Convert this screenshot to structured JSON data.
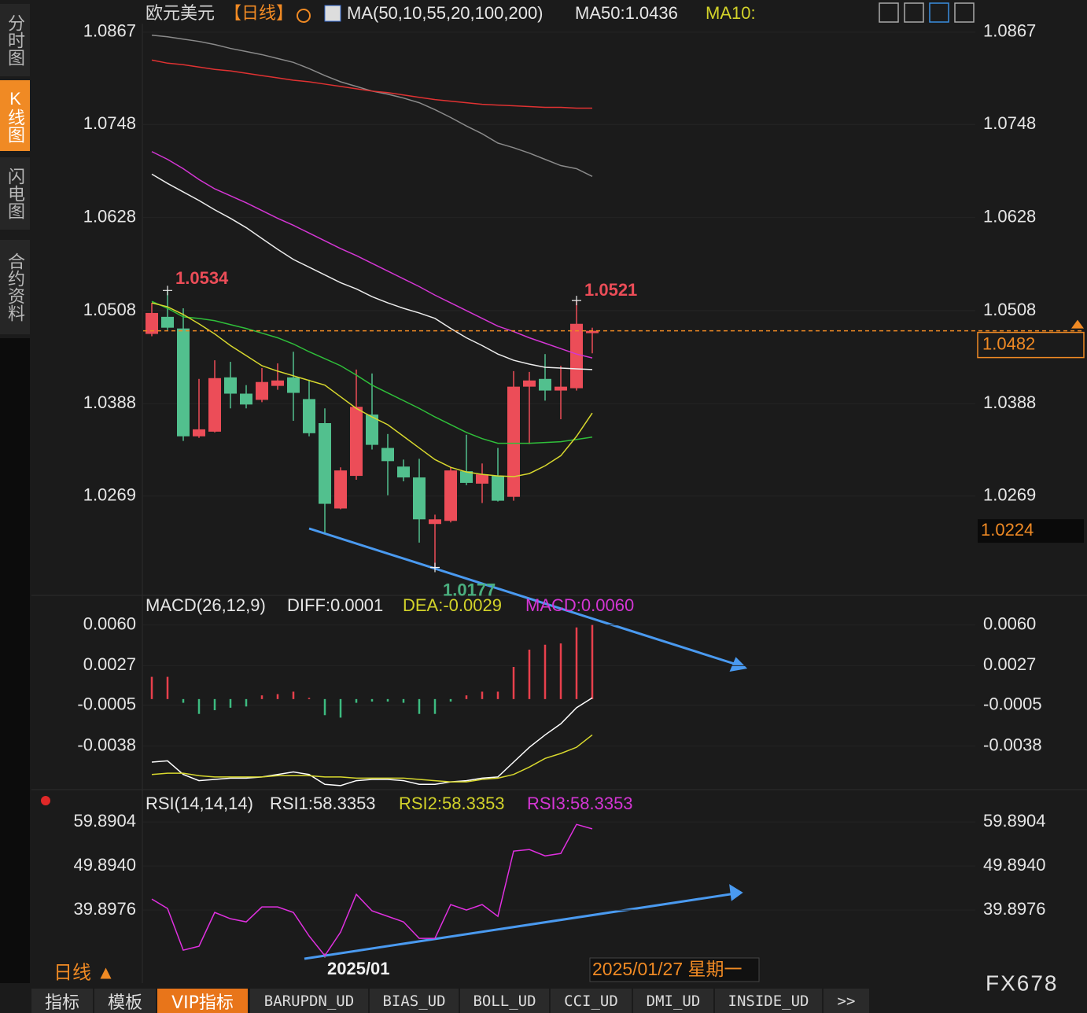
{
  "sidebar": [
    "分时图",
    "K线图",
    "闪电图",
    "合约资料"
  ],
  "tabs": [
    "指标",
    "模板",
    "VIP指标",
    "BARUPDN_UD",
    "BIAS_UD",
    "BOLL_UD",
    "CCI_UD",
    "DMI_UD",
    "INSIDE_UD",
    ">>"
  ],
  "footer": {
    "period": "日线 ▲",
    "current_date": "2025/01/27 星期一",
    "brand": "FX678"
  },
  "chart_data": [
    {
      "type": "candlestick",
      "title": "欧元美元",
      "period": "【日线】",
      "legend": [
        {
          "text": "MA(50,10,55,20,100,200)",
          "color": "#e6e6e6"
        },
        {
          "text": "MA50:1.0436",
          "color": "#e6e6e6"
        },
        {
          "text": "MA10:",
          "color": "#d2d22a"
        }
      ],
      "categories": [
        null,
        null,
        null,
        null,
        null,
        null,
        null,
        null,
        null,
        null,
        null,
        "2025/01",
        null,
        null,
        null,
        null,
        null,
        null,
        null,
        null,
        null,
        null,
        null,
        null,
        null,
        null,
        null,
        null,
        null
      ],
      "open": [
        1.0478,
        1.05,
        1.0485,
        1.0346,
        1.0352,
        1.0422,
        1.0401,
        1.0393,
        1.0411,
        1.0422,
        1.0394,
        1.0363,
        1.0253,
        1.0295,
        1.0374,
        1.0331,
        1.0307,
        1.0293,
        1.0233,
        1.0237,
        1.0301,
        1.0285,
        1.0295,
        1.0268,
        1.041,
        1.042,
        1.0405,
        1.0408,
        1.0479
      ],
      "high": [
        1.0518,
        1.0534,
        1.0511,
        1.042,
        1.0444,
        1.0442,
        1.0412,
        1.0434,
        1.044,
        1.0455,
        1.0419,
        1.0382,
        1.0306,
        1.0432,
        1.0427,
        1.0349,
        1.0316,
        1.0317,
        1.0245,
        1.0306,
        1.0348,
        1.0311,
        1.0331,
        1.043,
        1.0429,
        1.0452,
        1.0437,
        1.0521,
        1.0486
      ],
      "low": [
        1.0475,
        1.0483,
        1.034,
        1.0344,
        1.0351,
        1.0382,
        1.0382,
        1.039,
        1.0406,
        1.0366,
        1.0346,
        1.0222,
        1.0252,
        1.029,
        1.0329,
        1.027,
        1.0288,
        1.0209,
        1.0177,
        1.0235,
        1.0283,
        1.026,
        1.0262,
        1.0263,
        1.0336,
        1.0392,
        1.0368,
        1.0405,
        1.0453
      ],
      "close": [
        1.0505,
        1.0486,
        1.0346,
        1.0355,
        1.0421,
        1.0401,
        1.0387,
        1.0416,
        1.0418,
        1.0402,
        1.035,
        1.0259,
        1.0302,
        1.0384,
        1.0335,
        1.0314,
        1.0293,
        1.0239,
        1.0239,
        1.0302,
        1.0286,
        1.0297,
        1.0263,
        1.041,
        1.0418,
        1.0405,
        1.041,
        1.0491,
        1.0482
      ],
      "up_color": "#ec4d58",
      "down_color": "#52c08e",
      "lines": [
        {
          "color": "#8a8a8a",
          "values": [
            1.0863,
            1.0861,
            1.0858,
            1.0855,
            1.0851,
            1.0846,
            1.0842,
            1.0838,
            1.0833,
            1.0828,
            1.082,
            1.0811,
            1.0803,
            1.0797,
            1.0791,
            1.0787,
            1.0782,
            1.0776,
            1.0767,
            1.0757,
            1.0746,
            1.0736,
            1.0724,
            1.0718,
            1.0711,
            1.0703,
            1.0695,
            1.0691,
            1.0681
          ]
        },
        {
          "color": "#e03232",
          "values": [
            1.0831,
            1.0827,
            1.0825,
            1.0822,
            1.0819,
            1.0817,
            1.0814,
            1.0811,
            1.0808,
            1.0805,
            1.0803,
            1.08,
            1.0797,
            1.0794,
            1.0791,
            1.0789,
            1.0786,
            1.0783,
            1.078,
            1.0778,
            1.0776,
            1.0774,
            1.0773,
            1.0772,
            1.0771,
            1.077,
            1.077,
            1.0769,
            1.0769
          ]
        },
        {
          "color": "#d436d4",
          "values": [
            1.0713,
            1.0703,
            1.0691,
            1.0677,
            1.0665,
            1.0656,
            1.0647,
            1.0637,
            1.0627,
            1.0618,
            1.0608,
            1.0598,
            1.0588,
            1.0579,
            1.0569,
            1.0559,
            1.0549,
            1.0539,
            1.0528,
            1.0518,
            1.0508,
            1.0498,
            1.0488,
            1.0481,
            1.0473,
            1.0466,
            1.0459,
            1.0452,
            1.0447
          ]
        },
        {
          "color": "#ececec",
          "values": [
            1.0684,
            1.0672,
            1.0661,
            1.065,
            1.0638,
            1.0627,
            1.0615,
            1.0601,
            1.0587,
            1.0574,
            1.0564,
            1.0554,
            1.0544,
            1.0536,
            1.0526,
            1.0518,
            1.0511,
            1.0505,
            1.0498,
            1.0485,
            1.0473,
            1.0463,
            1.0452,
            1.0444,
            1.0439,
            1.0435,
            1.0434,
            1.0433,
            1.0432
          ]
        },
        {
          "color": "#2fbf3a",
          "values": [
            1.052,
            1.0511,
            1.05,
            1.0498,
            1.0495,
            1.049,
            1.0485,
            1.0479,
            1.0473,
            1.0465,
            1.0455,
            1.0446,
            1.0437,
            1.0425,
            1.0412,
            1.0402,
            1.0392,
            1.0382,
            1.0371,
            1.0361,
            1.0351,
            1.0343,
            1.0337,
            1.0337,
            1.0337,
            1.0338,
            1.0339,
            1.0342,
            1.0345
          ]
        },
        {
          "color": "#d8d82e",
          "values": [
            1.0518,
            1.0513,
            1.0503,
            1.0491,
            1.0478,
            1.0463,
            1.045,
            1.0437,
            1.043,
            1.0424,
            1.0418,
            1.0412,
            1.0397,
            1.0382,
            1.0371,
            1.0361,
            1.0346,
            1.0331,
            1.0316,
            1.0306,
            1.03,
            1.0297,
            1.0295,
            1.0294,
            1.0298,
            1.0308,
            1.0321,
            1.0346,
            1.0376
          ]
        }
      ],
      "cursor_price": 1.0224,
      "ylim": [
        1.0143,
        1.0878
      ],
      "yticks": [
        1.0867,
        1.0748,
        1.0628,
        1.0508,
        1.0388,
        1.0269
      ],
      "grid": true
    },
    {
      "type": "macd",
      "title": "MACD(26,12,9)",
      "legend": [
        {
          "text": "DIFF:0.0001",
          "color": "#e6e6e6"
        },
        {
          "text": "DEA:-0.0029",
          "color": "#d2d22a"
        },
        {
          "text": "MACD:0.0060",
          "color": "#d436d4"
        }
      ],
      "histogram": [
        0.0018,
        0.0018,
        -0.0003,
        -0.0012,
        -0.0009,
        -0.0007,
        -0.0006,
        0.0003,
        0.0004,
        0.0006,
        0.0001,
        -0.0013,
        -0.0015,
        -0.0003,
        -0.0002,
        -0.0002,
        -0.0003,
        -0.0012,
        -0.0012,
        -0.0002,
        0.0003,
        0.0006,
        0.0006,
        0.0026,
        0.004,
        0.0044,
        0.0045,
        0.0058,
        0.006
      ],
      "up_color": "#e8404c",
      "down_color": "#3dbb80",
      "lines": [
        {
          "color": "#ffffff",
          "values": [
            -0.0051,
            -0.005,
            -0.0061,
            -0.0066,
            -0.0065,
            -0.0064,
            -0.0064,
            -0.0063,
            -0.0061,
            -0.0059,
            -0.0061,
            -0.0069,
            -0.007,
            -0.0066,
            -0.0065,
            -0.0065,
            -0.0066,
            -0.0069,
            -0.0069,
            -0.0067,
            -0.0066,
            -0.0064,
            -0.0063,
            -0.0051,
            -0.0039,
            -0.0029,
            -0.002,
            -0.0007,
            0.0001
          ]
        },
        {
          "color": "#d8d82e",
          "values": [
            -0.0061,
            -0.006,
            -0.006,
            -0.0062,
            -0.0063,
            -0.0063,
            -0.0063,
            -0.0063,
            -0.0062,
            -0.0062,
            -0.0062,
            -0.0063,
            -0.0063,
            -0.0064,
            -0.0064,
            -0.0064,
            -0.0064,
            -0.0065,
            -0.0066,
            -0.0067,
            -0.0067,
            -0.0065,
            -0.0064,
            -0.0061,
            -0.0055,
            -0.0048,
            -0.0044,
            -0.0039,
            -0.0029
          ]
        }
      ],
      "ylim": [
        -0.0072,
        0.0068
      ],
      "yticks": [
        {
          "value": 0.006,
          "label": "0.0060"
        },
        0.0027,
        -0.0005,
        -0.0038
      ],
      "grid": true
    },
    {
      "type": "line",
      "title": "RSI(14,14,14)",
      "legend": [
        {
          "text": "RSI1:58.3353",
          "color": "#e6e6e6"
        },
        {
          "text": "RSI2:58.3353",
          "color": "#d2d22a"
        },
        {
          "text": "RSI3:58.3353",
          "color": "#d436d4"
        }
      ],
      "values": [
        42.4,
        40.25,
        30.79,
        31.69,
        39.36,
        37.93,
        37.22,
        40.61,
        40.61,
        39.36,
        34.01,
        29.54,
        34.9,
        43.47,
        39.72,
        38.47,
        37.22,
        33.47,
        33.47,
        41.15,
        39.9,
        41.15,
        38.47,
        53.29,
        53.64,
        52.21,
        52.75,
        59.35,
        58.3353
      ],
      "color": "#e030e0",
      "ylim": [
        25.1,
        62.6
      ],
      "yticks": [
        59.8904,
        {
          "value": 49.894,
          "label": "49.8940"
        },
        39.8976
      ],
      "grid": true
    }
  ]
}
